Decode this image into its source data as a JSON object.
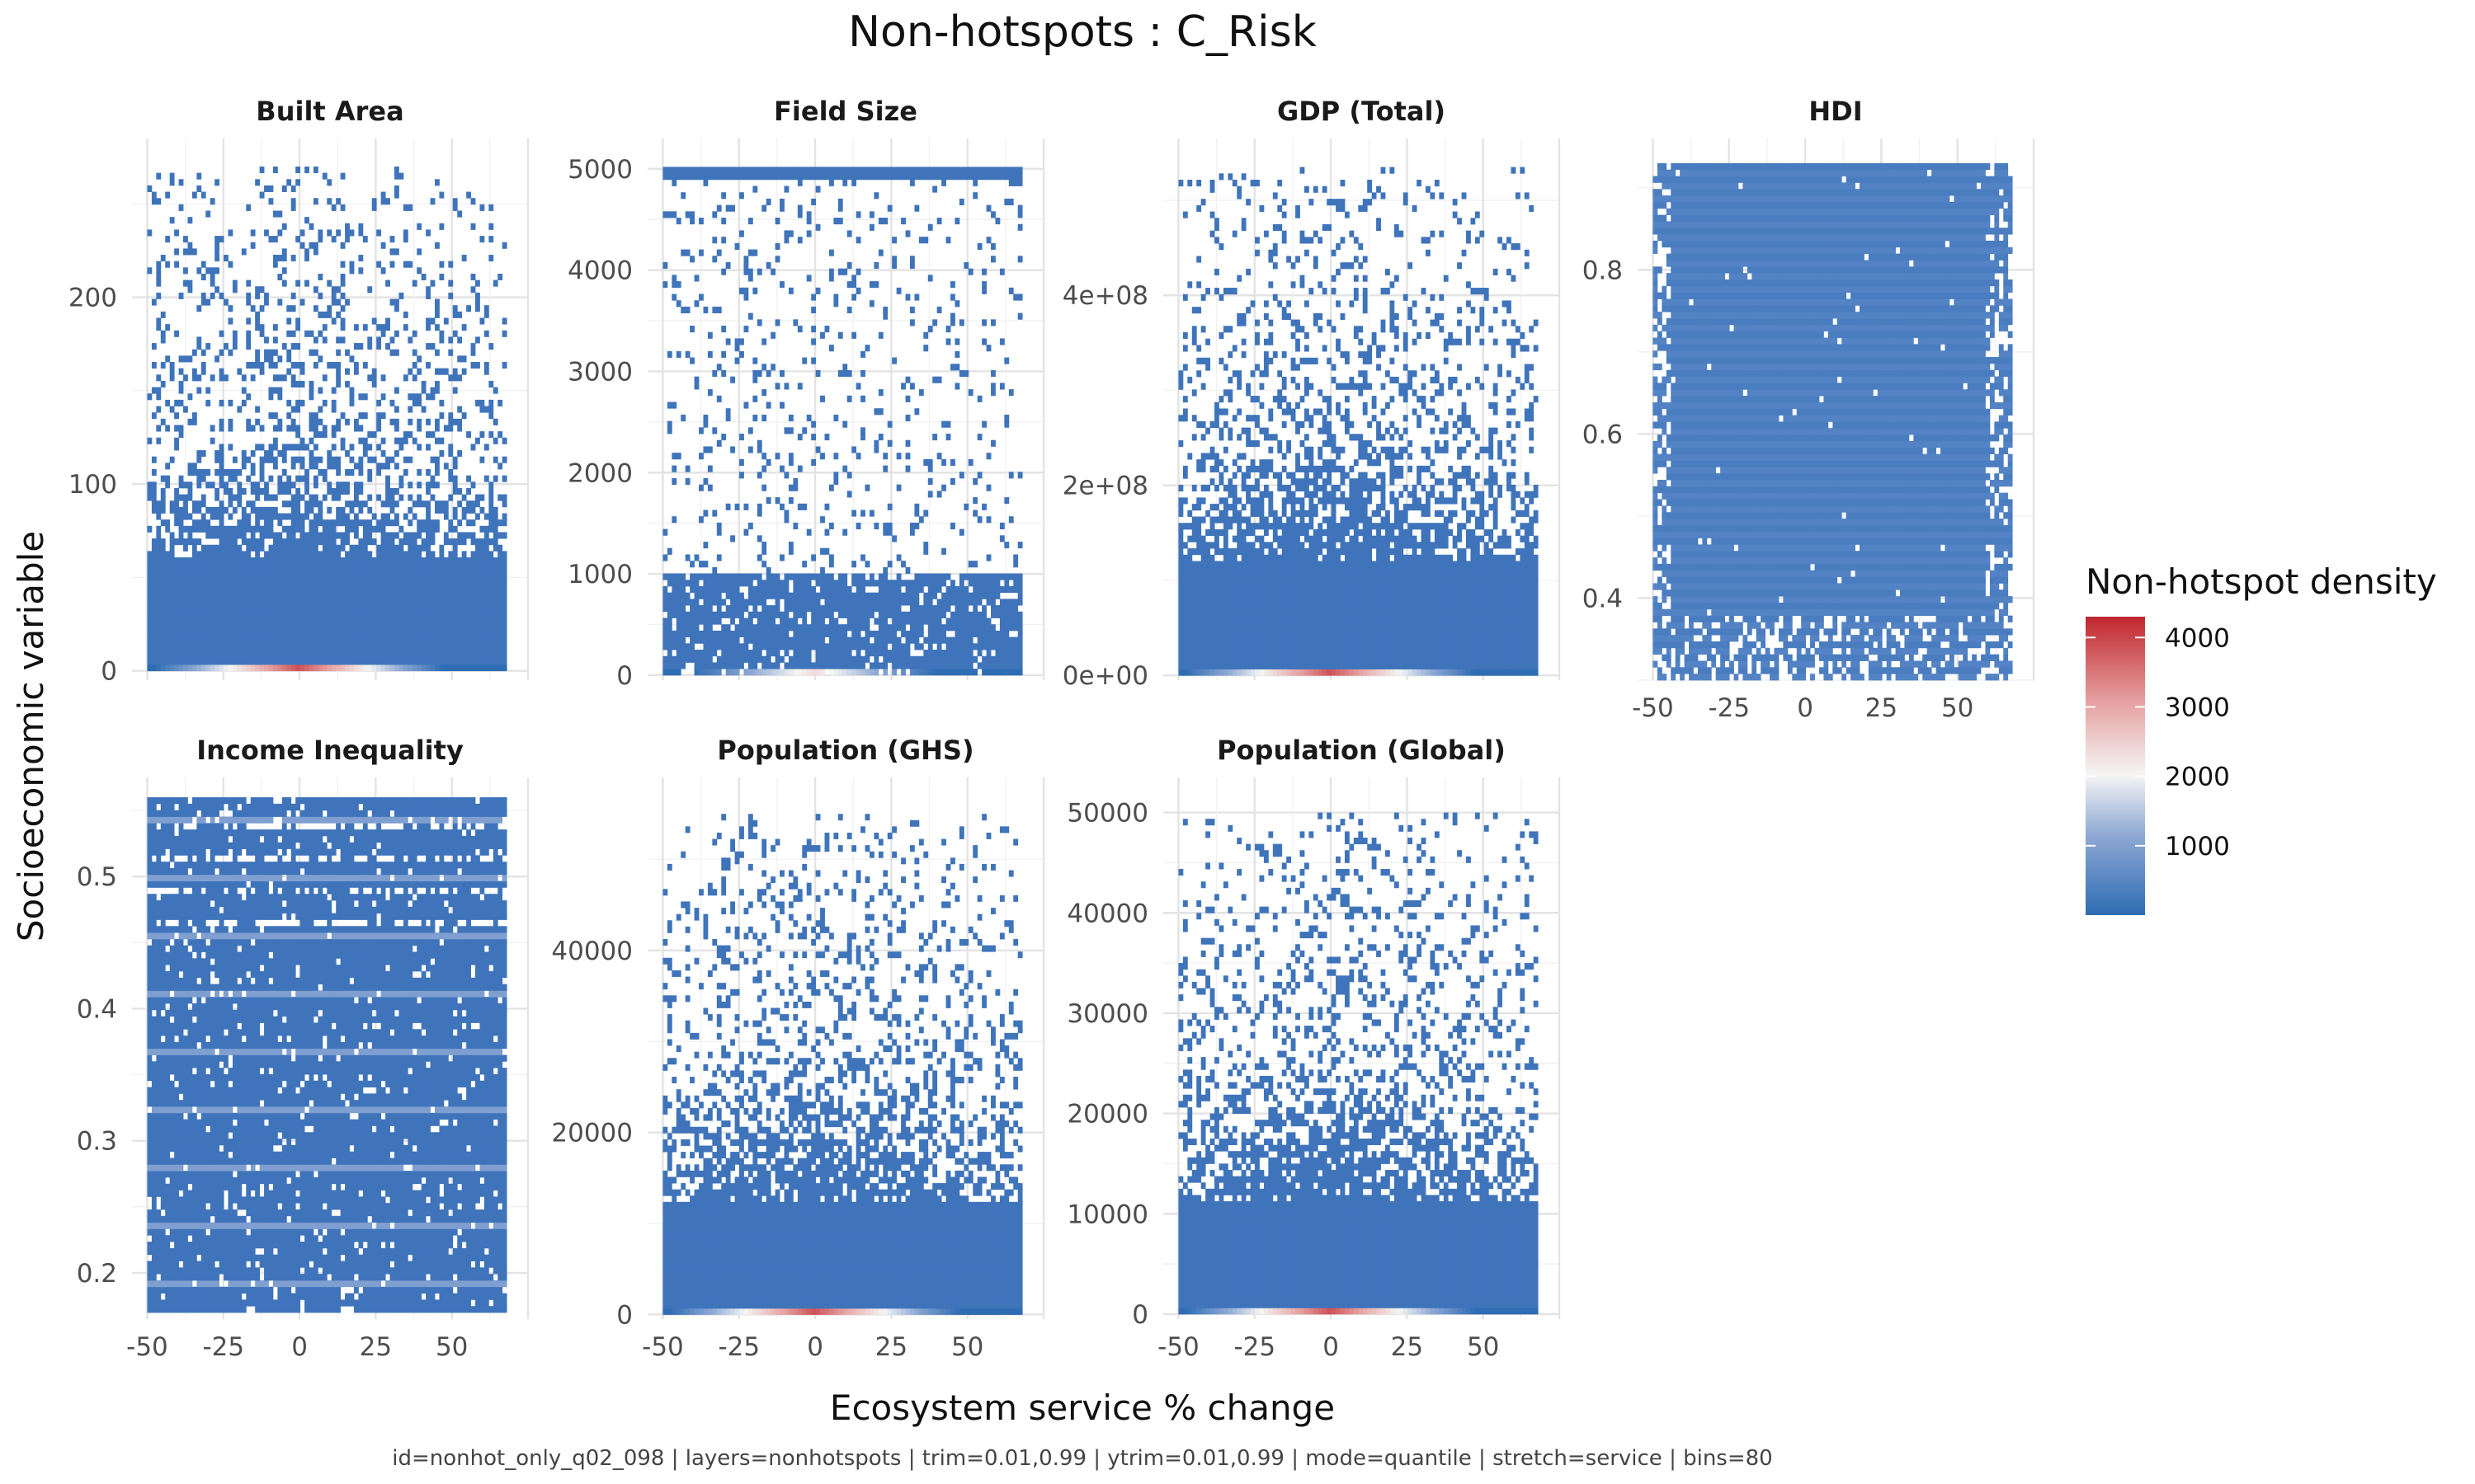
{
  "chart_data": {
    "type": "heatmap",
    "title": "Non-hotspots : C_Risk",
    "xlabel": "Ecosystem service % change",
    "ylabel": "Socioeconomic variable",
    "caption": "id=nonhot_only_q02_098 | layers=nonhotspots | trim=0.01,0.99 | ytrim=0.01,0.99 | mode=quantile | stretch=service | bins=80",
    "legend": {
      "title": "Non-hotspot density",
      "position": "right",
      "ticks": [
        {
          "value": 4000,
          "label": "4000"
        },
        {
          "value": 3000,
          "label": "3000"
        },
        {
          "value": 2000,
          "label": "2000"
        },
        {
          "value": 1000,
          "label": "1000"
        }
      ],
      "range": [
        0,
        4300
      ],
      "colors": [
        "#2e6cb3",
        "#8fa9d4",
        "#f5f5f5",
        "#e59f9f",
        "#c0272d"
      ]
    },
    "bins": 80,
    "x_ticks": [
      {
        "value": -50,
        "label": "-50"
      },
      {
        "value": -25,
        "label": "-25"
      },
      {
        "value": 0,
        "label": "0"
      },
      {
        "value": 25,
        "label": "25"
      },
      {
        "value": 50,
        "label": "50"
      }
    ],
    "panels": [
      {
        "title": "Built Area",
        "xlim": [
          -55,
          75
        ],
        "ylim": [
          -5,
          285
        ],
        "data_x": [
          -50,
          68
        ],
        "data_y": [
          0,
          270
        ],
        "yticks": [
          {
            "value": 0,
            "label": "0"
          },
          {
            "value": 100,
            "label": "100"
          },
          {
            "value": 200,
            "label": "200"
          }
        ],
        "show_x_ticks": false,
        "shape": "tail"
      },
      {
        "title": "Field Size",
        "xlim": [
          -55,
          75
        ],
        "ylim": [
          -50,
          5300
        ],
        "data_x": [
          -50,
          68
        ],
        "data_y": [
          0,
          5020
        ],
        "yticks": [
          {
            "value": 0,
            "label": "0"
          },
          {
            "value": 1000,
            "label": "1000"
          },
          {
            "value": 2000,
            "label": "2000"
          },
          {
            "value": 3000,
            "label": "3000"
          },
          {
            "value": 4000,
            "label": "4000"
          },
          {
            "value": 5000,
            "label": "5000"
          }
        ],
        "show_x_ticks": false,
        "shape": "field"
      },
      {
        "title": "GDP (Total)",
        "xlim": [
          -55,
          75
        ],
        "ylim": [
          -5000000,
          565000000
        ],
        "data_x": [
          -50,
          68
        ],
        "data_y": [
          0,
          535000000
        ],
        "yticks": [
          {
            "value": 0,
            "label": "0e+00"
          },
          {
            "value": 200000000,
            "label": "2e+08"
          },
          {
            "value": 400000000,
            "label": "4e+08"
          }
        ],
        "show_x_ticks": false,
        "shape": "tail"
      },
      {
        "title": "HDI",
        "xlim": [
          -55,
          75
        ],
        "ylim": [
          0.3,
          0.96
        ],
        "data_x": [
          -50,
          68
        ],
        "data_y": [
          0.3,
          0.93
        ],
        "yticks": [
          {
            "value": 0.4,
            "label": "0.4"
          },
          {
            "value": 0.6,
            "label": "0.6"
          },
          {
            "value": 0.8,
            "label": "0.8"
          }
        ],
        "show_x_ticks": true,
        "shape": "uniform"
      },
      {
        "title": "Income Inequality",
        "xlim": [
          -55,
          75
        ],
        "ylim": [
          0.165,
          0.575
        ],
        "data_x": [
          -50,
          68
        ],
        "data_y": [
          0.17,
          0.56
        ],
        "yticks": [
          {
            "value": 0.2,
            "label": "0.2"
          },
          {
            "value": 0.3,
            "label": "0.3"
          },
          {
            "value": 0.4,
            "label": "0.4"
          },
          {
            "value": 0.5,
            "label": "0.5"
          }
        ],
        "show_x_ticks": true,
        "shape": "bands"
      },
      {
        "title": "Population (GHS)",
        "xlim": [
          -55,
          75
        ],
        "ylim": [
          -500,
          59000
        ],
        "data_x": [
          -50,
          68
        ],
        "data_y": [
          0,
          55000
        ],
        "yticks": [
          {
            "value": 0,
            "label": "0"
          },
          {
            "value": 20000,
            "label": "20000"
          },
          {
            "value": 40000,
            "label": "40000"
          }
        ],
        "show_x_ticks": true,
        "shape": "tail"
      },
      {
        "title": "Population (Global)",
        "xlim": [
          -55,
          75
        ],
        "ylim": [
          -500,
          53500
        ],
        "data_x": [
          -50,
          68
        ],
        "data_y": [
          0,
          50000
        ],
        "yticks": [
          {
            "value": 0,
            "label": "0"
          },
          {
            "value": 10000,
            "label": "10000"
          },
          {
            "value": 20000,
            "label": "20000"
          },
          {
            "value": 30000,
            "label": "30000"
          },
          {
            "value": 40000,
            "label": "40000"
          },
          {
            "value": 50000,
            "label": "50000"
          }
        ],
        "show_x_ticks": true,
        "shape": "tail"
      }
    ]
  }
}
